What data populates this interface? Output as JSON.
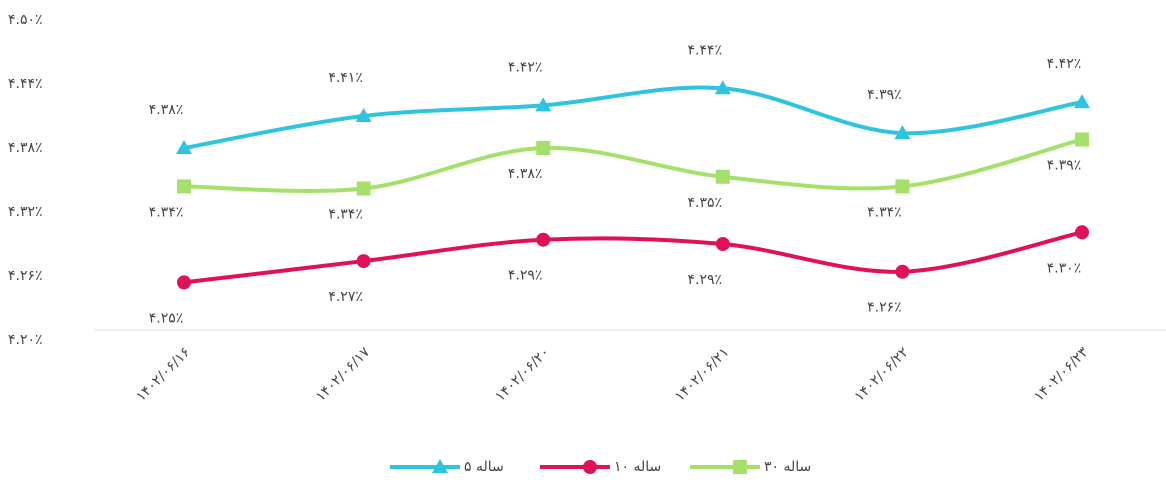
{
  "chart_data": {
    "type": "line",
    "categories": [
      "۱۴۰۲/۰۶/۱۶",
      "۱۴۰۲/۰۶/۱۷",
      "۱۴۰۲/۰۶/۲۰",
      "۱۴۰۲/۰۶/۲۱",
      "۱۴۰۲/۰۶/۲۲",
      "۱۴۰۲/۰۶/۲۳"
    ],
    "ylim": [
      4.2,
      4.5
    ],
    "yticks": [
      {
        "value": 4.2,
        "label": "۴.۲۰٪"
      },
      {
        "value": 4.26,
        "label": "۴.۲۶٪"
      },
      {
        "value": 4.32,
        "label": "۴.۳۲٪"
      },
      {
        "value": 4.38,
        "label": "۴.۳۸٪"
      },
      {
        "value": 4.44,
        "label": "۴.۴۴٪"
      },
      {
        "value": 4.5,
        "label": "۴.۵۰٪"
      }
    ],
    "series": [
      {
        "name": "۵ ساله",
        "color": "#2ec4e0",
        "marker": "triangle",
        "values": [
          4.38,
          4.41,
          4.42,
          4.436,
          4.394,
          4.423
        ],
        "value_labels": [
          "۴.۳۸٪",
          "۴.۴۱٪",
          "۴.۴۲٪",
          "۴.۴۴٪",
          "۴.۳۹٪",
          "۴.۴۲٪"
        ]
      },
      {
        "name": "۱۰ ساله",
        "color": "#e0105a",
        "marker": "circle",
        "values": [
          4.254,
          4.274,
          4.294,
          4.29,
          4.264,
          4.301
        ],
        "value_labels": [
          "۴.۲۵٪",
          "۴.۲۷٪",
          "۴.۲۹٪",
          "۴.۲۹٪",
          "۴.۲۶٪",
          "۴.۳۰٪"
        ]
      },
      {
        "name": "۳۰ ساله",
        "color": "#a5e06b",
        "marker": "square",
        "values": [
          4.344,
          4.342,
          4.38,
          4.353,
          4.344,
          4.388
        ],
        "value_labels": [
          "۴.۳۴٪",
          "۴.۳۴٪",
          "۴.۳۸٪",
          "۴.۳۵٪",
          "۴.۳۴٪",
          "۴.۳۹٪"
        ]
      }
    ]
  }
}
